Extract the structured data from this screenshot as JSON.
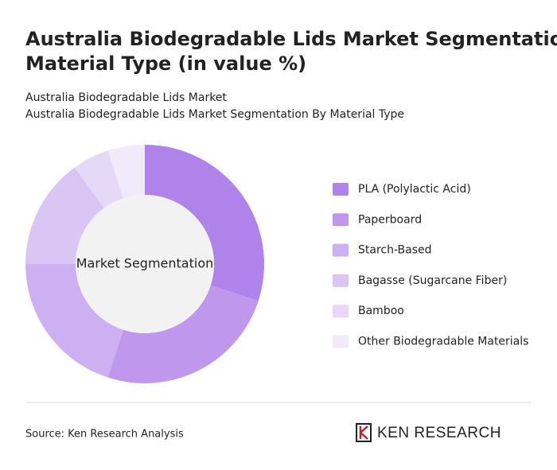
{
  "chart_data": {
    "type": "donut",
    "title": [
      "Australia Biodegradable Lids Market Segmentation By",
      "Material Type (in value %)"
    ],
    "subtitle": [
      "Australia Biodegradable Lids Market",
      "Australia Biodegradable Lids Market Segmentation By Material Type"
    ],
    "center_label": "Market Segmentation",
    "categories": [
      "PLA (Polylactic Acid)",
      "Paperboard",
      "Starch-Based",
      "Bagasse (Sugarcane Fiber)",
      "Bamboo",
      "Other Biodegradable Materials"
    ],
    "values": [
      30,
      25,
      20,
      15,
      5,
      5
    ],
    "colors": [
      "#b083ea",
      "#bf98ee",
      "#cdb0f1",
      "#dac6f5",
      "#e6d9f8",
      "#f1eafb"
    ],
    "source": "Source: Ken Research Analysis",
    "logo": "KEN RESEARCH"
  }
}
